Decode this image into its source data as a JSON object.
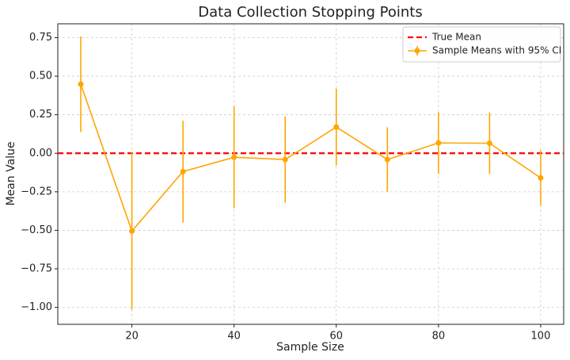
{
  "chart_data": {
    "type": "errorbar-line",
    "title": "Data Collection Stopping Points",
    "xlabel": "Sample Size",
    "ylabel": "Mean Value",
    "x": [
      10,
      20,
      30,
      40,
      50,
      60,
      70,
      80,
      90,
      100
    ],
    "series": [
      {
        "name": "Sample Means with 95% CI",
        "color": "#ffa500",
        "values": [
          0.448,
          -0.505,
          -0.119,
          -0.026,
          -0.041,
          0.17,
          -0.041,
          0.067,
          0.065,
          -0.16
        ],
        "errors": [
          0.31,
          0.51,
          0.33,
          0.33,
          0.28,
          0.25,
          0.21,
          0.2,
          0.2,
          0.18
        ]
      }
    ],
    "hlines": [
      {
        "name": "True Mean",
        "color": "#ff0000",
        "value": 0
      }
    ],
    "xlim": [
      5.5,
      104.5
    ],
    "ylim": [
      -1.11,
      0.84
    ],
    "xticks": [
      20,
      40,
      60,
      80,
      100
    ],
    "yticks": [
      {
        "value": -1,
        "label": "−1.00"
      },
      {
        "value": -0.75,
        "label": "−0.75"
      },
      {
        "value": -0.5,
        "label": "−0.50"
      },
      {
        "value": -0.25,
        "label": "−0.25"
      },
      {
        "value": 0,
        "label": "0.00"
      },
      {
        "value": 0.25,
        "label": "0.25"
      },
      {
        "value": 0.5,
        "label": "0.50"
      },
      {
        "value": 0.75,
        "label": "0.75"
      }
    ],
    "grid": true,
    "legend": "upper right"
  }
}
